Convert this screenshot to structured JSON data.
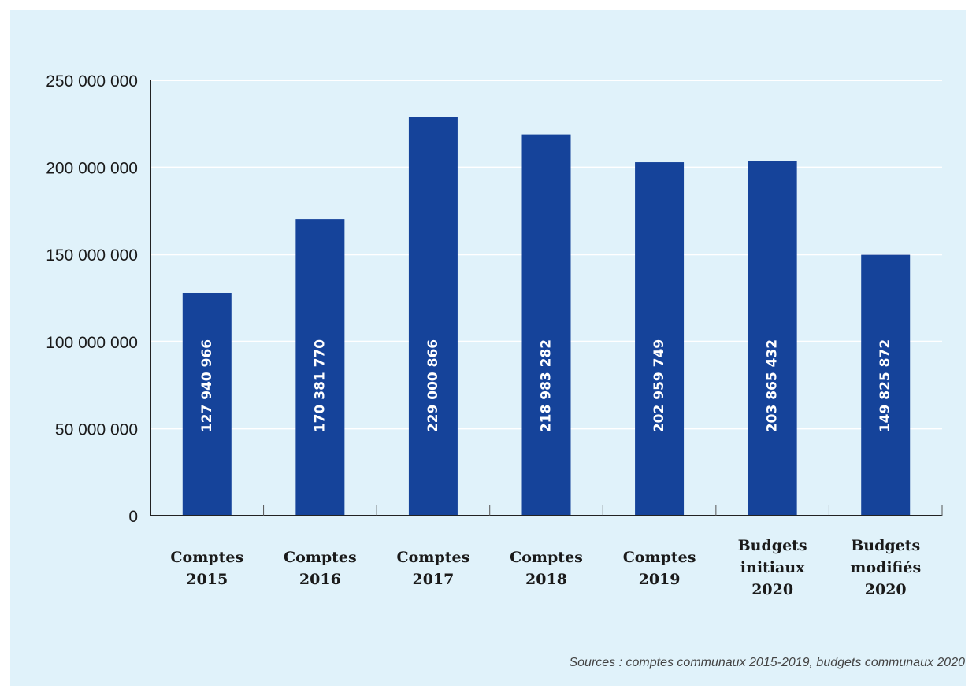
{
  "chart_data": {
    "type": "bar",
    "title": "",
    "xlabel": "",
    "ylabel": "",
    "categories": [
      [
        "Comptes",
        "2015"
      ],
      [
        "Comptes",
        "2016"
      ],
      [
        "Comptes",
        "2017"
      ],
      [
        "Comptes",
        "2018"
      ],
      [
        "Comptes",
        "2019"
      ],
      [
        "Budgets",
        "initiaux",
        "2020"
      ],
      [
        "Budgets",
        "modifiés",
        "2020"
      ]
    ],
    "values": [
      127940966,
      170381770,
      229000866,
      218983282,
      202959749,
      203865432,
      149825872
    ],
    "value_labels": [
      "127 940 966",
      "170 381 770",
      "229 000 866",
      "218 983 282",
      "202 959 749",
      "203 865 432",
      "149 825 872"
    ],
    "ylim": [
      0,
      250000000
    ],
    "yticks": [
      0,
      50000000,
      100000000,
      150000000,
      200000000,
      250000000
    ],
    "ytick_labels": [
      "0",
      "50 000 000",
      "100 000 000",
      "150 000 000",
      "200 000 000",
      "250 000 000"
    ],
    "grid": true,
    "bar_color": "#15439a",
    "grid_color": "#ffffff",
    "background_color": "#e0f2fa"
  },
  "source_note": "Sources : comptes communaux 2015-2019, budgets communaux 2020"
}
